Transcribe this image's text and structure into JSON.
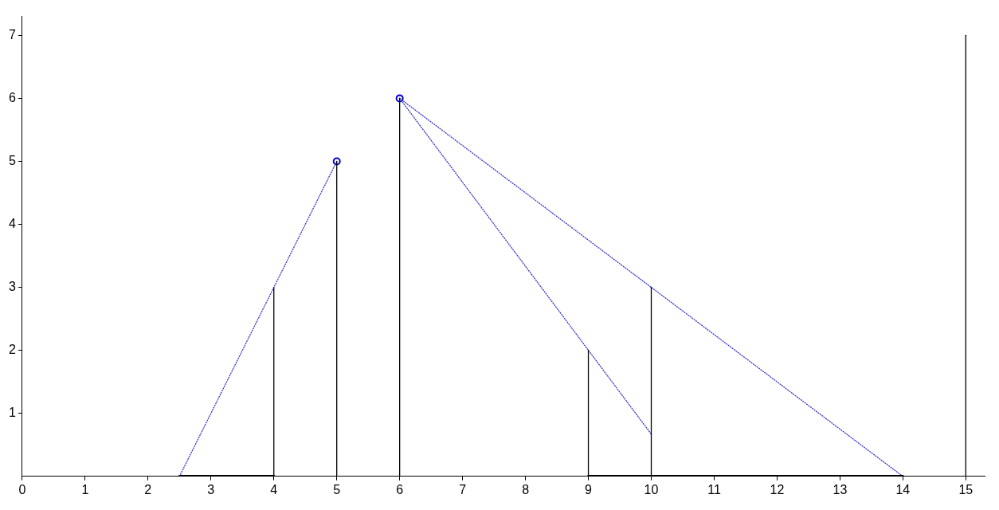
{
  "chart_data": {
    "type": "line",
    "xlim": [
      0,
      15.3
    ],
    "xticks": [
      0,
      1,
      2,
      3,
      4,
      5,
      6,
      7,
      8,
      9,
      10,
      11,
      12,
      13,
      14,
      15
    ],
    "ylim": [
      0,
      7.3
    ],
    "yticks": [
      1,
      2,
      3,
      4,
      5,
      6,
      7
    ],
    "grid": false,
    "legend": false,
    "series": [
      {
        "type": "line",
        "x": [
          4,
          4
        ],
        "values": [
          0,
          3
        ],
        "color": "#000000",
        "line_style": "solid",
        "marker": "none"
      },
      {
        "type": "line",
        "x": [
          5,
          5
        ],
        "values": [
          0,
          5
        ],
        "color": "#000000",
        "line_style": "solid",
        "marker": "none"
      },
      {
        "type": "line",
        "x": [
          6,
          6
        ],
        "values": [
          0,
          6
        ],
        "color": "#000000",
        "line_style": "solid",
        "marker": "none"
      },
      {
        "type": "line",
        "x": [
          9,
          9
        ],
        "values": [
          0,
          2
        ],
        "color": "#000000",
        "line_style": "solid",
        "marker": "none"
      },
      {
        "type": "line",
        "x": [
          10,
          10
        ],
        "values": [
          0,
          3
        ],
        "color": "#000000",
        "line_style": "solid",
        "marker": "none"
      },
      {
        "type": "line",
        "x": [
          15,
          15
        ],
        "values": [
          0,
          7
        ],
        "color": "#000000",
        "line_style": "solid",
        "marker": "none"
      },
      {
        "type": "line",
        "x": [
          2.5,
          4
        ],
        "values": [
          0,
          0
        ],
        "color": "#000000",
        "line_style": "solid",
        "marker": "none"
      },
      {
        "type": "line",
        "x": [
          9,
          14
        ],
        "values": [
          0,
          0
        ],
        "color": "#000000",
        "line_style": "solid",
        "marker": "none"
      },
      {
        "type": "line",
        "x": [
          2.5,
          5
        ],
        "values": [
          0,
          5
        ],
        "color": "#3333cc",
        "line_style": "dotted",
        "marker": "none"
      },
      {
        "type": "line",
        "x": [
          6,
          10
        ],
        "values": [
          6,
          0.67
        ],
        "color": "#3333cc",
        "line_style": "dotted",
        "marker": "none"
      },
      {
        "type": "line",
        "x": [
          6,
          14
        ],
        "values": [
          6,
          0
        ],
        "color": "#3333cc",
        "line_style": "dotted",
        "marker": "none"
      },
      {
        "type": "scatter",
        "x": [
          5,
          6
        ],
        "values": [
          5,
          6
        ],
        "color": "#0000cc",
        "marker": "circle"
      }
    ]
  }
}
